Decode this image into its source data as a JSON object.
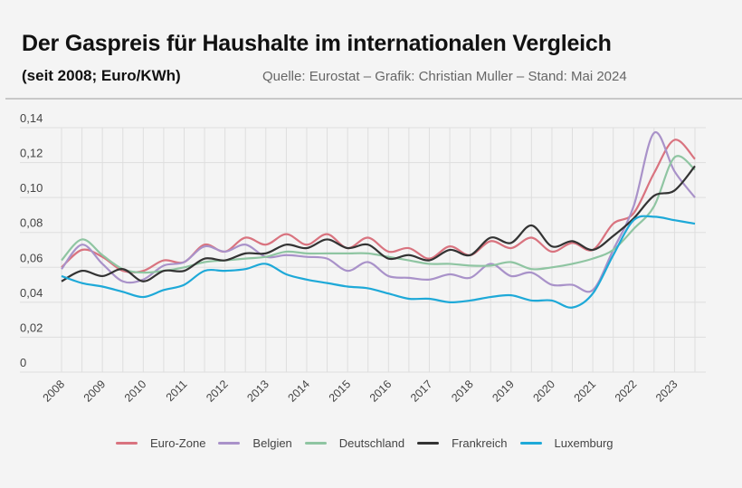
{
  "header": {
    "title": "Der Gaspreis für Haushalte im internationalen Vergleich",
    "subtitle": "(seit 2008; Euro/KWh)",
    "source": "Quelle: Eurostat – Grafik: Christian Muller – Stand: Mai 2024"
  },
  "chart_data": {
    "type": "line",
    "title": "Der Gaspreis für Haushalte im internationalen Vergleich",
    "subtitle": "(seit 2008; Euro/KWh)",
    "ylim": [
      0,
      0.14
    ],
    "yticks": [
      "0",
      "0,02",
      "0,04",
      "0,06",
      "0,08",
      "0,10",
      "0,12",
      "0,14"
    ],
    "ytick_values": [
      0,
      0.02,
      0.04,
      0.06,
      0.08,
      0.1,
      0.12,
      0.14
    ],
    "xtick_labels": [
      "2008",
      "2009",
      "2010",
      "2011",
      "2012",
      "2013",
      "2014",
      "2015",
      "2016",
      "2017",
      "2018",
      "2019",
      "2020",
      "2021",
      "2022",
      "2023"
    ],
    "x": [
      2008,
      2008.5,
      2009,
      2009.5,
      2010,
      2010.5,
      2011,
      2011.5,
      2012,
      2012.5,
      2013,
      2013.5,
      2014,
      2014.5,
      2015,
      2015.5,
      2016,
      2016.5,
      2017,
      2017.5,
      2018,
      2018.5,
      2019,
      2019.5,
      2020,
      2020.5,
      2021,
      2021.5,
      2022,
      2022.5,
      2023,
      2023.5
    ],
    "grid": true,
    "legend_position": "bottom",
    "series": [
      {
        "name": "Euro-Zone",
        "color": "#d9737f",
        "values": [
          0.06,
          0.07,
          0.066,
          0.058,
          0.058,
          0.064,
          0.063,
          0.073,
          0.069,
          0.077,
          0.073,
          0.079,
          0.073,
          0.079,
          0.071,
          0.077,
          0.069,
          0.071,
          0.065,
          0.072,
          0.067,
          0.075,
          0.071,
          0.077,
          0.069,
          0.074,
          0.07,
          0.085,
          0.091,
          0.114,
          0.133,
          0.122
        ]
      },
      {
        "name": "Belgien",
        "color": "#a992c9",
        "values": [
          0.059,
          0.073,
          0.062,
          0.052,
          0.053,
          0.061,
          0.063,
          0.072,
          0.069,
          0.073,
          0.066,
          0.067,
          0.066,
          0.065,
          0.058,
          0.063,
          0.055,
          0.054,
          0.053,
          0.056,
          0.054,
          0.062,
          0.055,
          0.057,
          0.05,
          0.05,
          0.047,
          0.07,
          0.095,
          0.137,
          0.115,
          0.1
        ]
      },
      {
        "name": "Deutschland",
        "color": "#8fc5a2",
        "values": [
          0.064,
          0.076,
          0.067,
          0.059,
          0.057,
          0.058,
          0.06,
          0.063,
          0.064,
          0.065,
          0.066,
          0.069,
          0.068,
          0.068,
          0.068,
          0.068,
          0.066,
          0.064,
          0.062,
          0.062,
          0.061,
          0.061,
          0.063,
          0.059,
          0.06,
          0.062,
          0.065,
          0.07,
          0.082,
          0.095,
          0.123,
          0.116
        ]
      },
      {
        "name": "Frankreich",
        "color": "#333333",
        "values": [
          0.052,
          0.058,
          0.055,
          0.059,
          0.052,
          0.058,
          0.058,
          0.065,
          0.064,
          0.068,
          0.068,
          0.073,
          0.071,
          0.076,
          0.071,
          0.073,
          0.065,
          0.067,
          0.064,
          0.07,
          0.067,
          0.077,
          0.074,
          0.084,
          0.072,
          0.075,
          0.07,
          0.078,
          0.088,
          0.101,
          0.104,
          0.118
        ]
      },
      {
        "name": "Luxemburg",
        "color": "#1ea9d8",
        "values": [
          0.055,
          0.051,
          0.049,
          0.046,
          0.043,
          0.047,
          0.05,
          0.058,
          0.058,
          0.059,
          0.062,
          0.056,
          0.053,
          0.051,
          0.049,
          0.048,
          0.045,
          0.042,
          0.042,
          0.04,
          0.041,
          0.043,
          0.044,
          0.041,
          0.041,
          0.037,
          0.045,
          0.067,
          0.087,
          0.089,
          0.087,
          0.085
        ]
      }
    ]
  }
}
